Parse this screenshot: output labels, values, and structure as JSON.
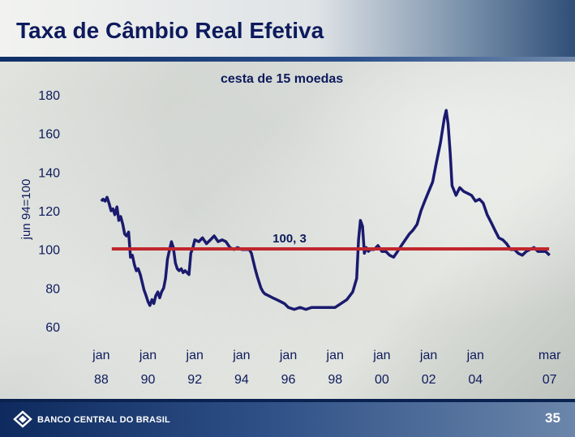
{
  "slide": {
    "title": "Taxa de Câmbio Real Efetiva",
    "footer_logo_text": "BANCO CENTRAL DO BRASIL",
    "page_number": "35"
  },
  "colors": {
    "series_line": "#1a1a6e",
    "reference_line": "#c0272d",
    "text": "#0d1a5c",
    "header_rule": "#0f2f66"
  },
  "chart_data": {
    "type": "line",
    "title": "",
    "subtitle": "cesta de 15 moedas",
    "ylabel": "jun 94=100",
    "xlabel": "",
    "ylim": [
      60,
      180
    ],
    "yticks": [
      180,
      160,
      140,
      120,
      100,
      80,
      60
    ],
    "xlim": [
      1987,
      2007.25
    ],
    "xticks": [
      {
        "x": 1988,
        "top": "jan",
        "bottom": "88"
      },
      {
        "x": 1990,
        "top": "jan",
        "bottom": "90"
      },
      {
        "x": 1992,
        "top": "jan",
        "bottom": "92"
      },
      {
        "x": 1994,
        "top": "jan",
        "bottom": "94"
      },
      {
        "x": 1996,
        "top": "jan",
        "bottom": "96"
      },
      {
        "x": 1998,
        "top": "jan",
        "bottom": "98"
      },
      {
        "x": 2000,
        "top": "jan",
        "bottom": "00"
      },
      {
        "x": 2002,
        "top": "jan",
        "bottom": "02"
      },
      {
        "x": 2004,
        "top": "jan",
        "bottom": "04"
      },
      {
        "x": 2007.17,
        "top": "mar",
        "bottom": "07"
      }
    ],
    "grid": false,
    "legend": "none",
    "reference_line": {
      "y": 100.3,
      "label": "100, 3"
    },
    "series": [
      {
        "x": [
          1988.0,
          1988.08,
          1988.17,
          1988.25,
          1988.33,
          1988.42,
          1988.5,
          1988.58,
          1988.67,
          1988.75,
          1988.83,
          1988.92,
          1989.0,
          1989.08,
          1989.17,
          1989.25,
          1989.33,
          1989.42,
          1989.5,
          1989.58,
          1989.67,
          1989.75,
          1989.83,
          1989.92,
          1990.0,
          1990.08,
          1990.17,
          1990.25,
          1990.33,
          1990.42,
          1990.5,
          1990.58,
          1990.67,
          1990.75,
          1990.83,
          1990.92,
          1991.0,
          1991.08,
          1991.17,
          1991.25,
          1991.33,
          1991.42,
          1991.5,
          1991.58,
          1991.67,
          1991.75,
          1991.83,
          1991.92,
          1992.0,
          1992.17,
          1992.33,
          1992.5,
          1992.67,
          1992.83,
          1993.0,
          1993.17,
          1993.33,
          1993.5,
          1993.67,
          1993.83,
          1994.0,
          1994.17,
          1994.33,
          1994.42,
          1994.5,
          1994.58,
          1994.67,
          1994.75,
          1994.83,
          1994.92,
          1995.0,
          1995.17,
          1995.33,
          1995.5,
          1995.67,
          1995.83,
          1996.0,
          1996.25,
          1996.5,
          1996.75,
          1997.0,
          1997.25,
          1997.5,
          1997.75,
          1998.0,
          1998.25,
          1998.5,
          1998.75,
          1998.92,
          1999.0,
          1999.08,
          1999.17,
          1999.25,
          1999.33,
          1999.42,
          1999.5,
          1999.67,
          1999.83,
          2000.0,
          2000.17,
          2000.33,
          2000.5,
          2000.67,
          2000.83,
          2001.0,
          2001.17,
          2001.33,
          2001.5,
          2001.67,
          2001.83,
          2002.0,
          2002.17,
          2002.33,
          2002.5,
          2002.67,
          2002.75,
          2002.83,
          2002.92,
          2003.0,
          2003.17,
          2003.33,
          2003.5,
          2003.67,
          2003.83,
          2004.0,
          2004.17,
          2004.33,
          2004.5,
          2004.67,
          2004.83,
          2005.0,
          2005.17,
          2005.33,
          2005.5,
          2005.67,
          2005.83,
          2006.0,
          2006.17,
          2006.33,
          2006.5,
          2006.67,
          2006.83,
          2007.0,
          2007.08,
          2007.17
        ],
        "values": [
          125,
          126,
          125,
          127,
          124,
          120,
          121,
          118,
          122,
          115,
          117,
          113,
          108,
          107,
          109,
          96,
          97,
          92,
          89,
          90,
          87,
          83,
          79,
          76,
          73,
          71,
          74,
          72,
          76,
          78,
          75,
          78,
          80,
          85,
          95,
          100,
          104,
          101,
          93,
          90,
          89,
          90,
          88,
          89,
          88,
          87,
          98,
          101,
          105,
          104,
          106,
          103,
          105,
          107,
          104,
          105,
          104,
          101,
          100,
          101,
          100,
          100,
          100,
          98,
          94,
          90,
          86,
          83,
          80,
          78,
          77,
          76,
          75,
          74,
          73,
          72,
          70,
          69,
          70,
          69,
          70,
          70,
          70,
          70,
          70,
          72,
          74,
          78,
          85,
          105,
          115,
          112,
          98,
          101,
          99,
          100,
          100,
          102,
          99,
          99,
          97,
          96,
          99,
          102,
          105,
          108,
          110,
          113,
          120,
          125,
          130,
          135,
          145,
          155,
          168,
          172,
          165,
          150,
          133,
          128,
          132,
          130,
          129,
          128,
          125,
          126,
          124,
          118,
          114,
          110,
          106,
          105,
          103,
          100,
          100,
          98,
          97,
          99,
          100,
          101,
          99,
          99,
          99,
          98,
          97
        ]
      }
    ]
  }
}
